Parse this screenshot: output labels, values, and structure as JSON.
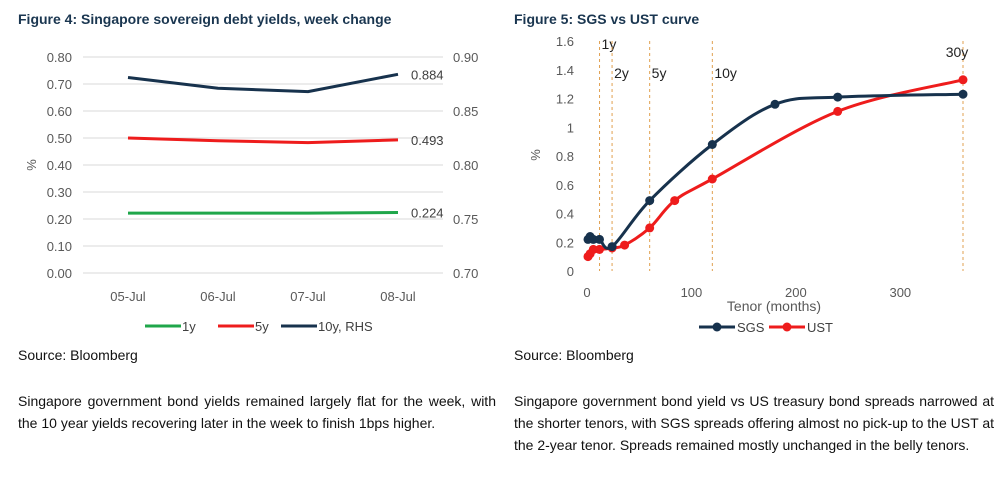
{
  "figure4": {
    "title": "Figure 4: Singapore sovereign debt yields, week change",
    "source": "Source: Bloomberg",
    "description": "Singapore government bond yields remained largely flat for the week, with the 10 year yields recovering later in the week to finish 1bps higher."
  },
  "figure5": {
    "title": "Figure 5: SGS vs UST curve",
    "source": "Source: Bloomberg",
    "description": "Singapore government bond yield vs US treasury bond spreads narrowed at the shorter tenors, with SGS spreads offering almost no pick-up to the UST at the 2-year tenor. Spreads remained mostly unchanged in the belly tenors."
  },
  "chart_data": [
    {
      "type": "line",
      "title": "Figure 4: Singapore sovereign debt yields, week change",
      "ylabel": "%",
      "categories": [
        "05-Jul",
        "06-Jul",
        "07-Jul",
        "08-Jul"
      ],
      "ylim": [
        0,
        0.8
      ],
      "y_ticks": [
        "0.00",
        "0.10",
        "0.20",
        "0.30",
        "0.40",
        "0.50",
        "0.60",
        "0.70",
        "0.80"
      ],
      "y2lim": [
        0.7,
        0.9
      ],
      "y2_ticks": [
        "0.70",
        "0.75",
        "0.80",
        "0.85",
        "0.90"
      ],
      "grid": true,
      "legend_position": "bottom",
      "series": [
        {
          "name": "1y",
          "axis": "left",
          "color": "#1fa64a",
          "values": [
            0.222,
            0.222,
            0.222,
            0.224
          ],
          "end_label": "0.224"
        },
        {
          "name": "5y",
          "axis": "left",
          "color": "#ee1c1c",
          "values": [
            0.5,
            0.49,
            0.483,
            0.493
          ],
          "end_label": "0.493"
        },
        {
          "name": "10y, RHS",
          "axis": "right",
          "color": "#17324d",
          "values": [
            0.881,
            0.871,
            0.868,
            0.884
          ],
          "end_label": "0.884"
        }
      ]
    },
    {
      "type": "line",
      "title": "Figure 5: SGS vs UST curve",
      "xlabel": "Tenor (months)",
      "ylabel": "%",
      "xlim": [
        0,
        360
      ],
      "x_ticks": [
        0,
        100,
        200,
        300
      ],
      "ylim": [
        0,
        1.6
      ],
      "y_ticks": [
        "0",
        "0.2",
        "0.4",
        "0.6",
        "0.8",
        "1",
        "1.2",
        "1.4",
        "1.6"
      ],
      "grid": false,
      "legend_position": "bottom",
      "tenor_markers": [
        {
          "label": "1y",
          "x": 12
        },
        {
          "label": "2y",
          "x": 24
        },
        {
          "label": "5y",
          "x": 60
        },
        {
          "label": "10y",
          "x": 120
        },
        {
          "label": "30y",
          "x": 360
        }
      ],
      "series": [
        {
          "name": "SGS",
          "color": "#17324d",
          "x": [
            1,
            3,
            6,
            12,
            24,
            60,
            120,
            180,
            240,
            360
          ],
          "values": [
            0.22,
            0.24,
            0.22,
            0.22,
            0.17,
            0.49,
            0.88,
            1.16,
            1.21,
            1.23
          ]
        },
        {
          "name": "UST",
          "color": "#ee1c1c",
          "x": [
            1,
            3,
            6,
            12,
            24,
            36,
            60,
            84,
            120,
            240,
            360
          ],
          "values": [
            0.1,
            0.12,
            0.15,
            0.15,
            0.16,
            0.18,
            0.3,
            0.49,
            0.64,
            1.11,
            1.33
          ]
        }
      ]
    }
  ]
}
